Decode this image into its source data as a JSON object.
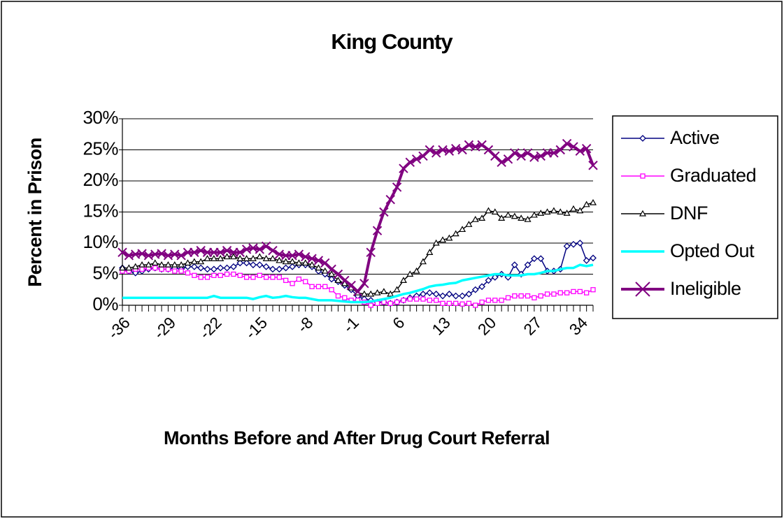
{
  "chart_data": {
    "type": "line",
    "title": "King County",
    "xlabel": "Months Before and After Drug Court Referral",
    "ylabel": "Percent in Prison",
    "x": [
      -36,
      -35,
      -34,
      -33,
      -32,
      -31,
      -30,
      -29,
      -28,
      -27,
      -26,
      -25,
      -24,
      -23,
      -22,
      -21,
      -20,
      -19,
      -18,
      -17,
      -16,
      -15,
      -14,
      -13,
      -12,
      -11,
      -10,
      -9,
      -8,
      -7,
      -6,
      -5,
      -4,
      -3,
      -2,
      -1,
      0,
      1,
      2,
      3,
      4,
      5,
      6,
      7,
      8,
      9,
      10,
      11,
      12,
      13,
      14,
      15,
      16,
      17,
      18,
      19,
      20,
      21,
      22,
      23,
      24,
      25,
      26,
      27,
      28,
      29,
      30,
      31,
      32,
      33,
      34,
      35,
      36
    ],
    "xlim": [
      -36,
      36
    ],
    "xticks": [
      -36,
      -29,
      -22,
      -15,
      -8,
      -1,
      6,
      13,
      20,
      27,
      34
    ],
    "ylim": [
      0,
      30
    ],
    "yticks": [
      {
        "value": 0,
        "label": "0%"
      },
      {
        "value": 5,
        "label": "5%"
      },
      {
        "value": 10,
        "label": "10%"
      },
      {
        "value": 15,
        "label": "15%"
      },
      {
        "value": 20,
        "label": "20%"
      },
      {
        "value": 25,
        "label": "25%"
      },
      {
        "value": 30,
        "label": "30%"
      }
    ],
    "grid": true,
    "legend": "right",
    "series": [
      {
        "name": "Active",
        "color": "#000080",
        "marker": "diamond",
        "values": [
          6,
          5.5,
          5.2,
          5.5,
          5.8,
          6,
          5.8,
          5.8,
          6,
          5.8,
          6.2,
          6.2,
          6,
          5.8,
          5.8,
          6,
          6,
          6.2,
          6.8,
          6.8,
          6.5,
          6.5,
          6.2,
          5.8,
          5.8,
          6,
          6.2,
          6.5,
          6.5,
          6.2,
          5.5,
          5,
          4.2,
          3.8,
          3.2,
          2.5,
          1.5,
          1,
          0.8,
          0.5,
          0.5,
          0.3,
          0.5,
          0.8,
          1.2,
          1.5,
          1.8,
          2,
          1.8,
          1.5,
          1.8,
          1.5,
          1.5,
          1.8,
          2.5,
          3,
          4,
          4.5,
          5,
          4.5,
          6.5,
          5,
          6.5,
          7.5,
          7.5,
          5.5,
          5.5,
          5.8,
          9.5,
          9.8,
          10,
          7.2,
          7.6
        ]
      },
      {
        "name": "Graduated",
        "color": "#ff00ff",
        "marker": "square",
        "values": [
          5.5,
          5.5,
          5.8,
          5.8,
          6,
          6,
          5.8,
          5.8,
          5.5,
          5.5,
          5.2,
          4.8,
          4.5,
          4.5,
          4.8,
          4.8,
          5,
          5,
          4.8,
          4.5,
          4.5,
          4.8,
          4.5,
          4.5,
          4.5,
          4,
          3.5,
          4.2,
          3.8,
          3,
          3,
          3,
          2.5,
          1.5,
          1.2,
          0.8,
          0.8,
          0.5,
          0,
          0.3,
          0.5,
          0.3,
          0.5,
          0.8,
          1,
          1,
          1,
          0.8,
          0.8,
          0.3,
          0.3,
          0.3,
          0.2,
          0.3,
          0,
          0.5,
          0.8,
          0.8,
          0.8,
          1.2,
          1.5,
          1.5,
          1.5,
          1.2,
          1.5,
          1.8,
          1.8,
          2,
          2,
          2.2,
          2.2,
          2,
          2.5
        ]
      },
      {
        "name": "DNF",
        "color": "#000000",
        "marker": "triangle",
        "values": [
          6,
          6,
          6.2,
          6.5,
          6.5,
          6.8,
          6.5,
          6.5,
          6.5,
          6.5,
          6.8,
          7,
          7,
          7.5,
          7.5,
          7.5,
          7.8,
          7.8,
          7.5,
          7.5,
          7.5,
          7.8,
          7.5,
          7.5,
          7.2,
          7,
          7,
          6.8,
          6.8,
          6.5,
          6,
          5.5,
          5,
          4,
          3.5,
          2.8,
          2,
          1.8,
          1.8,
          2,
          2.2,
          1.8,
          2.5,
          4,
          5,
          5.5,
          7,
          8.5,
          10,
          10.5,
          10.8,
          11.5,
          12.2,
          13,
          13.8,
          14,
          15.2,
          15,
          14,
          14.5,
          14.3,
          14,
          13.8,
          14.5,
          14.8,
          15,
          15.2,
          15,
          14.8,
          15.5,
          15.2,
          16.2,
          16.5
        ]
      },
      {
        "name": "Opted Out",
        "color": "#00ffff",
        "marker": "none",
        "values": [
          1.2,
          1.2,
          1.2,
          1.2,
          1.2,
          1.2,
          1.2,
          1.2,
          1.2,
          1.2,
          1.2,
          1.2,
          1.2,
          1.2,
          1.5,
          1.2,
          1.2,
          1.2,
          1.2,
          1.2,
          1.0,
          1.3,
          1.5,
          1.2,
          1.3,
          1.5,
          1.3,
          1.2,
          1.2,
          1,
          0.8,
          0.8,
          0.8,
          0.7,
          0.6,
          0.5,
          0.5,
          0.5,
          0.6,
          0.8,
          1,
          1.2,
          1.5,
          1.8,
          2,
          2.3,
          2.6,
          3,
          3.2,
          3.3,
          3.5,
          3.6,
          4,
          4.2,
          4.4,
          4.6,
          4.8,
          5,
          5,
          4.8,
          4.8,
          4.8,
          5,
          5,
          5.2,
          5.5,
          5.5,
          5.8,
          6,
          6,
          6.5,
          6.3,
          6.5
        ]
      },
      {
        "name": "Ineligible",
        "color": "#800080",
        "marker": "x",
        "values": [
          8.5,
          8,
          8.2,
          8.3,
          8,
          8.2,
          8.3,
          8,
          8.2,
          8,
          8.5,
          8.5,
          8.8,
          8.5,
          8.5,
          8.5,
          8.8,
          8.5,
          8.5,
          9,
          9.2,
          9,
          9.5,
          8.8,
          8.2,
          8,
          8,
          8.2,
          7.8,
          7.5,
          7.2,
          6.8,
          5.8,
          5,
          4,
          3.2,
          2.2,
          3.5,
          8.5,
          12,
          15,
          17,
          19,
          22,
          23,
          23.5,
          24,
          25,
          24.5,
          25,
          24.8,
          25.2,
          25,
          25.8,
          25.5,
          25.8,
          25,
          24,
          23,
          23.5,
          24.5,
          24,
          24.5,
          23.8,
          24,
          24.5,
          24.5,
          25,
          26,
          25.5,
          24.8,
          25.2,
          22.5
        ]
      }
    ]
  }
}
